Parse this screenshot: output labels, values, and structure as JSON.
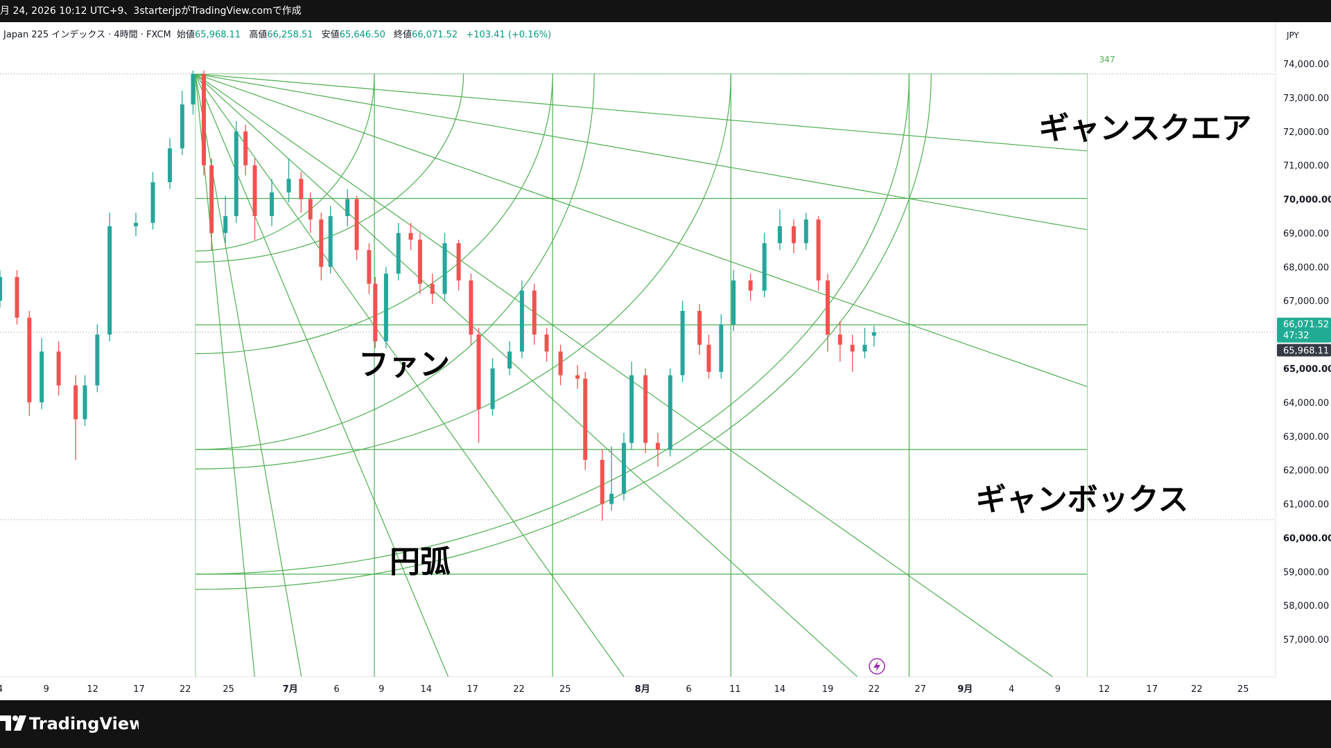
{
  "top_bar": {
    "caption": "月 24, 2026 10:12 UTC+9、3starterjpがTradingView.comで作成"
  },
  "footer": {
    "brand": "TradingView"
  },
  "chart_data": {
    "type": "candlestick",
    "title": "Japan 225 インデックス · 4時間 · FXCM",
    "legend": [
      {
        "name": "始値",
        "value": "65,968.11"
      },
      {
        "name": "高値",
        "value": "66,258.51"
      },
      {
        "name": "安値",
        "value": "65,646.50"
      },
      {
        "name": "終値",
        "value": "66,071.52"
      }
    ],
    "change": "+103.41 (+0.16%)",
    "currency": "JPY",
    "up_color": "#26a69a",
    "down_color": "#ef5350",
    "drawing_color": "#4caf50",
    "x": [
      0,
      1.1,
      1.9,
      2.7,
      3.8,
      4.9,
      5.5,
      6.3,
      7.1,
      8.8,
      9.9,
      11,
      11.8,
      12.5,
      13.2,
      13.7,
      14.6,
      15.3,
      15.9,
      16.5,
      17.6,
      18.7,
      19.5,
      20.1,
      20.8,
      21.4,
      22.5,
      23.1,
      23.9,
      24.3,
      25,
      25.8,
      26.6,
      27.2,
      28,
      28.8,
      29.7,
      30.5,
      31,
      31.9,
      33,
      33.8,
      34.6,
      35.4,
      36.3,
      37.4,
      37.9,
      39,
      39.6,
      40.4,
      40.9,
      41.8,
      42.6,
      43.4,
      44.2,
      45.3,
      45.9,
      46.7,
      47.5,
      48.6,
      49.5,
      50.5,
      51.4,
      52.2,
      53,
      53.6,
      54.4,
      55.2,
      56,
      56.6
    ],
    "open": [
      67000,
      67700,
      66500,
      64000,
      65500,
      64500,
      63500,
      64500,
      66000,
      69200,
      69300,
      70500,
      71500,
      72800,
      73700,
      71000,
      69000,
      69500,
      72000,
      71000,
      69500,
      70200,
      70600,
      70000,
      69400,
      68000,
      69500,
      70000,
      68500,
      67500,
      65800,
      67800,
      69000,
      68800,
      67500,
      67200,
      68700,
      67600,
      66000,
      63800,
      65000,
      65500,
      67300,
      66000,
      65500,
      64800,
      64700,
      62300,
      61000,
      61300,
      62800,
      64800,
      62800,
      62600,
      64800,
      66700,
      65700,
      64900,
      66300,
      67600,
      67300,
      68700,
      69200,
      68700,
      69400,
      67600,
      66000,
      65700,
      65500,
      65968.11
    ],
    "high": [
      67900,
      67900,
      66700,
      65900,
      65800,
      64800,
      64800,
      66300,
      69600,
      69600,
      70800,
      71800,
      73200,
      73800,
      73800,
      71200,
      70100,
      72300,
      72200,
      71200,
      70600,
      71200,
      70800,
      70200,
      69600,
      69800,
      70300,
      70100,
      68700,
      67700,
      68000,
      69300,
      69300,
      69000,
      67800,
      69000,
      68800,
      67800,
      66200,
      65300,
      65800,
      67600,
      67500,
      66200,
      65700,
      65100,
      64900,
      62600,
      62700,
      63100,
      65200,
      65000,
      63100,
      65000,
      67000,
      66900,
      66000,
      66600,
      67900,
      67800,
      69000,
      69700,
      69400,
      69600,
      69500,
      67800,
      66400,
      66000,
      66200,
      66258.51
    ],
    "low": [
      66800,
      66300,
      63600,
      63800,
      64200,
      62300,
      63300,
      64300,
      65800,
      68900,
      69100,
      70300,
      71300,
      72500,
      70700,
      68500,
      68700,
      69300,
      70700,
      68800,
      69200,
      69900,
      69600,
      69000,
      67600,
      67800,
      69200,
      68200,
      67200,
      65600,
      65600,
      67600,
      68500,
      67200,
      66900,
      67000,
      67300,
      65700,
      62800,
      63600,
      64800,
      65300,
      65700,
      65200,
      64500,
      64400,
      62000,
      60500,
      60800,
      61100,
      62600,
      62500,
      62100,
      62400,
      64600,
      65400,
      64700,
      64700,
      66100,
      67000,
      67100,
      68500,
      68400,
      68500,
      67300,
      65500,
      65200,
      64900,
      65300,
      65646.5
    ],
    "close": [
      67700,
      66500,
      64000,
      65500,
      64500,
      63500,
      64500,
      66000,
      69200,
      69300,
      70500,
      71500,
      72800,
      73700,
      71000,
      69000,
      69500,
      72000,
      71000,
      69500,
      70200,
      70600,
      70000,
      69400,
      68000,
      69500,
      70000,
      68500,
      67500,
      65800,
      67800,
      69000,
      68800,
      67500,
      67200,
      68700,
      67600,
      66000,
      63800,
      65000,
      65500,
      67300,
      66000,
      65500,
      64800,
      64700,
      62300,
      61000,
      61300,
      62800,
      64800,
      62800,
      62600,
      64800,
      66700,
      65700,
      64900,
      66300,
      67600,
      67300,
      68700,
      69200,
      68700,
      69400,
      67600,
      66000,
      65700,
      65500,
      65700,
      66071.52
    ],
    "xlim": [
      0,
      82.6
    ],
    "ylim": [
      55898,
      75227
    ],
    "yticks": [
      {
        "value": 74000,
        "label": "74,000.00"
      },
      {
        "value": 73000,
        "label": "73,000.00"
      },
      {
        "value": 72000,
        "label": "72,000.00"
      },
      {
        "value": 71000,
        "label": "71,000.00"
      },
      {
        "value": 70000,
        "label": "70,000.00"
      },
      {
        "value": 69000,
        "label": "69,000.00"
      },
      {
        "value": 68000,
        "label": "68,000.00"
      },
      {
        "value": 67000,
        "label": "67,000.00"
      },
      {
        "value": 65000,
        "label": "65,000.00"
      },
      {
        "value": 64000,
        "label": "64,000.00"
      },
      {
        "value": 63000,
        "label": "63,000.00"
      },
      {
        "value": 62000,
        "label": "62,000.00"
      },
      {
        "value": 61000,
        "label": "61,000.00"
      },
      {
        "value": 60000,
        "label": "60,000.00"
      },
      {
        "value": 59000,
        "label": "59,000.00"
      },
      {
        "value": 58000,
        "label": "58,000.00"
      },
      {
        "value": 57000,
        "label": "57,000.00"
      }
    ],
    "xticks": [
      {
        "value": 0,
        "label": "4"
      },
      {
        "value": 3,
        "label": "9"
      },
      {
        "value": 6,
        "label": "12"
      },
      {
        "value": 9,
        "label": "17"
      },
      {
        "value": 12,
        "label": "22"
      },
      {
        "value": 14.8,
        "label": "25"
      },
      {
        "value": 18.8,
        "label": "7月"
      },
      {
        "value": 21.8,
        "label": "6"
      },
      {
        "value": 24.7,
        "label": "9"
      },
      {
        "value": 27.6,
        "label": "14"
      },
      {
        "value": 30.6,
        "label": "17"
      },
      {
        "value": 33.6,
        "label": "22"
      },
      {
        "value": 36.6,
        "label": "25"
      },
      {
        "value": 41.6,
        "label": "8月"
      },
      {
        "value": 44.6,
        "label": "6"
      },
      {
        "value": 47.6,
        "label": "11"
      },
      {
        "value": 50.5,
        "label": "14"
      },
      {
        "value": 53.6,
        "label": "19"
      },
      {
        "value": 56.6,
        "label": "22"
      },
      {
        "value": 59.6,
        "label": "27"
      },
      {
        "value": 62.5,
        "label": "9月"
      },
      {
        "value": 65.5,
        "label": "4"
      },
      {
        "value": 68.5,
        "label": "9"
      },
      {
        "value": 71.5,
        "label": "12"
      },
      {
        "value": 74.6,
        "label": "17"
      },
      {
        "value": 77.5,
        "label": "22"
      },
      {
        "value": 80.5,
        "label": "25"
      }
    ],
    "last_price": {
      "value": 66071.52,
      "label": "66,071.52"
    },
    "countdown": "47:32",
    "open_price": {
      "value": 65968.11,
      "label": "65,968.11"
    },
    "dotted_levels": [
      73700,
      60530
    ],
    "box_label": "347",
    "annotations": [
      "ギャンスクエア",
      "ファン",
      "ギャンボックス",
      "円弧"
    ]
  }
}
